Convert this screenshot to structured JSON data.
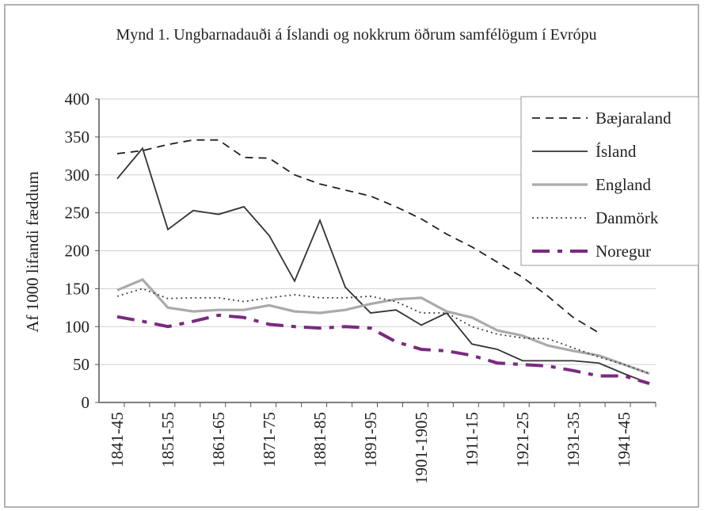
{
  "chart_data": {
    "type": "line",
    "title": "Mynd 1. Ungbarnadauði á Íslandi og nokkrum öðrum samfélögum í Evrópu",
    "y_label": "Af 1000 lifandi fæddum",
    "categories": [
      "1841-45",
      null,
      "1851-55",
      null,
      "1861-65",
      null,
      "1871-75",
      null,
      "1881-85",
      null,
      "1891-95",
      null,
      "1901-1905",
      null,
      "1911-15",
      null,
      "1921-25",
      null,
      "1931-35",
      null,
      "1941-45",
      null
    ],
    "series": [
      {
        "name": "Bæjaraland",
        "color": "#222222",
        "dash": "dashed",
        "values": [
          328,
          332,
          340,
          346,
          346,
          323,
          322,
          300,
          288,
          280,
          272,
          258,
          242,
          222,
          205,
          185,
          165,
          140,
          112,
          92,
          null,
          null
        ]
      },
      {
        "name": "Ísland",
        "color": "#333333",
        "dash": "solid",
        "values": [
          295,
          335,
          228,
          253,
          248,
          258,
          220,
          160,
          240,
          152,
          118,
          122,
          102,
          118,
          77,
          70,
          55,
          55,
          55,
          52,
          38,
          25
        ]
      },
      {
        "name": "England",
        "color": "#aaaaaa",
        "dash": "solid",
        "values": [
          148,
          162,
          125,
          120,
          122,
          122,
          128,
          120,
          118,
          122,
          130,
          136,
          138,
          120,
          112,
          95,
          88,
          75,
          68,
          62,
          50,
          38
        ]
      },
      {
        "name": "Danmörk",
        "color": "#444444",
        "dash": "dotted",
        "values": [
          140,
          150,
          137,
          138,
          138,
          133,
          138,
          142,
          138,
          138,
          140,
          133,
          118,
          118,
          100,
          90,
          85,
          84,
          72,
          60,
          50,
          38
        ]
      },
      {
        "name": "Noregur",
        "color": "#7a2a80",
        "dash": "dashdot",
        "values": [
          113,
          107,
          100,
          107,
          115,
          112,
          103,
          100,
          98,
          100,
          98,
          80,
          70,
          68,
          62,
          52,
          50,
          48,
          42,
          35,
          35,
          25
        ]
      }
    ],
    "ylim": [
      0,
      400
    ],
    "yticks": [
      0,
      50,
      100,
      150,
      200,
      250,
      300,
      350,
      400
    ],
    "grid": true,
    "legend": "upper right"
  }
}
